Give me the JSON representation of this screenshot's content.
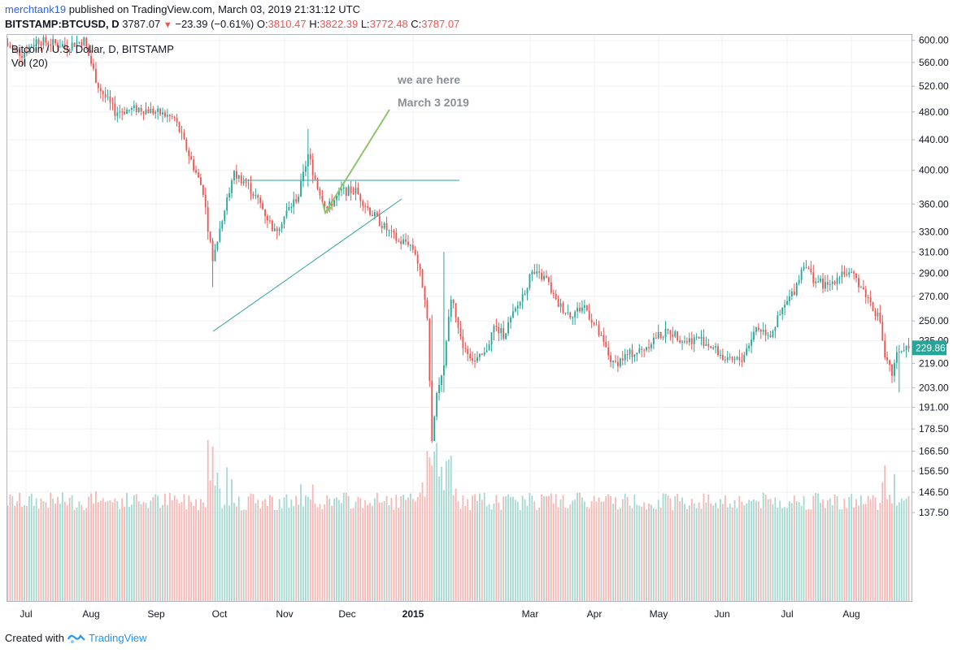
{
  "header": {
    "user": "merchtank19",
    "published_text": " published on TradingView.com, March 03, 2019 21:31:12 UTC",
    "symbol": "BITSTAMP:BTCUSD, D",
    "price": "3787.07",
    "change": "−23.39 (−0.61%)",
    "o_label": "O:",
    "o_value": "3810.47",
    "h_label": "H:",
    "h_value": "3822.39",
    "l_label": "L:",
    "l_value": "3772.48",
    "c_label": "C:",
    "c_value": "3787.07"
  },
  "legend": {
    "series_title": "Bitcoin / U.S. Dollar, D, BITSTAMP",
    "volume_title": "Vol (20)"
  },
  "annotation": {
    "line1": "we are here",
    "line2": "March 3 2019"
  },
  "last_price_label": "229.86",
  "footer": {
    "created_with": "Created with",
    "brand": "TradingView"
  },
  "colors": {
    "up": "#26a69a",
    "down": "#ef5350",
    "vol_up": "#a5d9d2",
    "vol_down": "#f7b7b4",
    "trendline": "#2ba39b",
    "arrow": "#8fc46c",
    "grid": "#eef1f5"
  },
  "chart_data": {
    "type": "candlestick",
    "title": "Bitcoin / U.S. Dollar, D, BITSTAMP",
    "y_scale": "log",
    "y_ticks": [
      "600.00",
      "560.00",
      "520.00",
      "480.00",
      "440.00",
      "400.00",
      "360.00",
      "330.00",
      "310.00",
      "290.00",
      "270.00",
      "250.00",
      "235.00",
      "219.00",
      "203.00",
      "191.00",
      "178.50",
      "166.50",
      "156.50",
      "146.50",
      "137.50"
    ],
    "x_labels": [
      "Jul",
      "Aug",
      "Sep",
      "Oct",
      "Nov",
      "Dec",
      "2015",
      "Mar",
      "Apr",
      "May",
      "Jun",
      "Jul",
      "Aug"
    ],
    "last_price": 229.86,
    "close_path": [
      {
        "x": 0,
        "y": 590
      },
      {
        "x": 6,
        "y": 575
      },
      {
        "x": 12,
        "y": 600
      },
      {
        "x": 25,
        "y": 590
      },
      {
        "x": 32,
        "y": 600
      },
      {
        "x": 38,
        "y": 520
      },
      {
        "x": 45,
        "y": 480
      },
      {
        "x": 55,
        "y": 485
      },
      {
        "x": 62,
        "y": 480
      },
      {
        "x": 70,
        "y": 470
      },
      {
        "x": 76,
        "y": 420
      },
      {
        "x": 82,
        "y": 375
      },
      {
        "x": 86,
        "y": 300
      },
      {
        "x": 90,
        "y": 345
      },
      {
        "x": 95,
        "y": 395
      },
      {
        "x": 100,
        "y": 385
      },
      {
        "x": 106,
        "y": 360
      },
      {
        "x": 112,
        "y": 330
      },
      {
        "x": 118,
        "y": 355
      },
      {
        "x": 122,
        "y": 370
      },
      {
        "x": 126,
        "y": 420
      },
      {
        "x": 130,
        "y": 380
      },
      {
        "x": 134,
        "y": 355
      },
      {
        "x": 140,
        "y": 375
      },
      {
        "x": 146,
        "y": 375
      },
      {
        "x": 152,
        "y": 352
      },
      {
        "x": 158,
        "y": 335
      },
      {
        "x": 164,
        "y": 320
      },
      {
        "x": 168,
        "y": 320
      },
      {
        "x": 171,
        "y": 310
      },
      {
        "x": 174,
        "y": 280
      },
      {
        "x": 176,
        "y": 255
      },
      {
        "x": 178,
        "y": 171
      },
      {
        "x": 180,
        "y": 200
      },
      {
        "x": 183,
        "y": 215
      },
      {
        "x": 186,
        "y": 270
      },
      {
        "x": 190,
        "y": 235
      },
      {
        "x": 196,
        "y": 220
      },
      {
        "x": 200,
        "y": 225
      },
      {
        "x": 204,
        "y": 245
      },
      {
        "x": 208,
        "y": 240
      },
      {
        "x": 214,
        "y": 262
      },
      {
        "x": 220,
        "y": 290
      },
      {
        "x": 226,
        "y": 285
      },
      {
        "x": 230,
        "y": 265
      },
      {
        "x": 236,
        "y": 255
      },
      {
        "x": 242,
        "y": 262
      },
      {
        "x": 248,
        "y": 240
      },
      {
        "x": 254,
        "y": 218
      },
      {
        "x": 260,
        "y": 225
      },
      {
        "x": 266,
        "y": 228
      },
      {
        "x": 272,
        "y": 238
      },
      {
        "x": 278,
        "y": 242
      },
      {
        "x": 284,
        "y": 235
      },
      {
        "x": 290,
        "y": 237
      },
      {
        "x": 296,
        "y": 230
      },
      {
        "x": 302,
        "y": 220
      },
      {
        "x": 308,
        "y": 222
      },
      {
        "x": 314,
        "y": 245
      },
      {
        "x": 320,
        "y": 240
      },
      {
        "x": 326,
        "y": 262
      },
      {
        "x": 330,
        "y": 275
      },
      {
        "x": 334,
        "y": 300
      },
      {
        "x": 338,
        "y": 285
      },
      {
        "x": 344,
        "y": 278
      },
      {
        "x": 350,
        "y": 292
      },
      {
        "x": 356,
        "y": 285
      },
      {
        "x": 362,
        "y": 265
      },
      {
        "x": 366,
        "y": 250
      },
      {
        "x": 368,
        "y": 222
      },
      {
        "x": 371,
        "y": 212
      },
      {
        "x": 374,
        "y": 230
      },
      {
        "x": 378,
        "y": 228
      }
    ],
    "wick_extremes": [
      {
        "x": 86,
        "low": 278,
        "high": 300
      },
      {
        "x": 126,
        "low": 380,
        "high": 455
      },
      {
        "x": 178,
        "low": 171,
        "high": 255
      },
      {
        "x": 183,
        "low": 200,
        "high": 310
      },
      {
        "x": 374,
        "low": 200,
        "high": 232
      }
    ],
    "volume": {
      "typical_range": [
        138,
        148
      ],
      "max_value": 169
    }
  }
}
